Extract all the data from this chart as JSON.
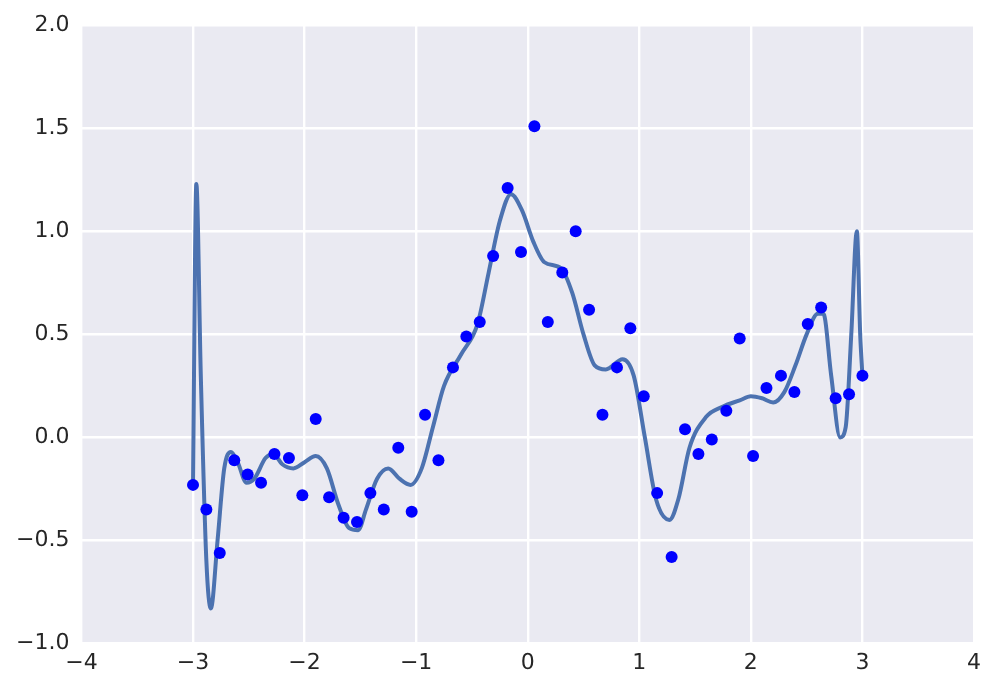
{
  "chart_data": {
    "type": "scatter",
    "xlim": [
      -4,
      4
    ],
    "xticks": [
      -4,
      -3,
      -2,
      -1,
      0,
      1,
      2,
      3,
      4
    ],
    "ylim": [
      -1,
      2
    ],
    "yticks": [
      {
        "value": -1,
        "label": "−1.0"
      },
      -0.5,
      {
        "value": 0,
        "label": "0.0"
      },
      0.5,
      {
        "value": 1,
        "label": "1.0"
      },
      1.5,
      {
        "value": 2,
        "label": "2.0"
      }
    ],
    "grid": true,
    "legend": false,
    "series": [
      {
        "color": "#0000ff",
        "marker": "circle",
        "x": [
          -3.0,
          -2.88,
          -2.76,
          -2.63,
          -2.51,
          -2.39,
          -2.27,
          -2.14,
          -2.02,
          -1.9,
          -1.78,
          -1.65,
          -1.53,
          -1.41,
          -1.29,
          -1.16,
          -1.04,
          -0.92,
          -0.8,
          -0.67,
          -0.55,
          -0.43,
          -0.31,
          -0.18,
          -0.06,
          0.06,
          0.18,
          0.31,
          0.43,
          0.55,
          0.67,
          0.8,
          0.92,
          1.04,
          1.16,
          1.29,
          1.41,
          1.53,
          1.65,
          1.78,
          1.9,
          2.02,
          2.14,
          2.27,
          2.39,
          2.51,
          2.63,
          2.76,
          2.88,
          3.0
        ],
        "values": [
          -0.23,
          -0.35,
          -0.56,
          -0.11,
          -0.18,
          -0.22,
          -0.08,
          -0.1,
          -0.28,
          0.09,
          -0.29,
          -0.39,
          -0.41,
          -0.27,
          -0.35,
          -0.05,
          -0.36,
          0.11,
          -0.11,
          0.34,
          0.49,
          0.56,
          0.88,
          1.21,
          0.9,
          1.51,
          0.56,
          0.8,
          1.0,
          0.62,
          0.11,
          0.34,
          0.53,
          0.2,
          -0.27,
          -0.58,
          0.04,
          -0.08,
          -0.01,
          0.13,
          0.48,
          -0.09,
          0.24,
          0.3,
          0.22,
          0.55,
          0.63,
          0.19,
          0.21,
          0.3
        ]
      },
      {
        "type": "line",
        "color": "#4c72b0",
        "marker": "none",
        "line_style": "solid",
        "x": [
          -3.0,
          -2.97,
          -2.93,
          -2.88,
          -2.84,
          -2.78,
          -2.72,
          -2.66,
          -2.6,
          -2.52,
          -2.45,
          -2.35,
          -2.28,
          -2.2,
          -2.1,
          -2.0,
          -1.9,
          -1.8,
          -1.7,
          -1.6,
          -1.52,
          -1.45,
          -1.35,
          -1.25,
          -1.15,
          -1.05,
          -0.95,
          -0.85,
          -0.75,
          -0.6,
          -0.45,
          -0.35,
          -0.25,
          -0.15,
          -0.05,
          0.05,
          0.15,
          0.3,
          0.4,
          0.5,
          0.6,
          0.7,
          0.85,
          0.95,
          1.05,
          1.15,
          1.27,
          1.35,
          1.45,
          1.6,
          1.75,
          1.9,
          2.0,
          2.1,
          2.2,
          2.3,
          2.4,
          2.5,
          2.6,
          2.65,
          2.72,
          2.8,
          2.85,
          2.9,
          2.95,
          2.98,
          3.0
        ],
        "values": [
          -0.23,
          1.23,
          0.3,
          -0.6,
          -0.83,
          -0.5,
          -0.15,
          -0.07,
          -0.12,
          -0.22,
          -0.2,
          -0.1,
          -0.08,
          -0.13,
          -0.15,
          -0.12,
          -0.09,
          -0.15,
          -0.32,
          -0.44,
          -0.45,
          -0.35,
          -0.2,
          -0.15,
          -0.2,
          -0.23,
          -0.15,
          0.05,
          0.25,
          0.4,
          0.55,
          0.8,
          1.05,
          1.18,
          1.1,
          0.95,
          0.85,
          0.82,
          0.7,
          0.5,
          0.35,
          0.33,
          0.38,
          0.3,
          0.0,
          -0.3,
          -0.4,
          -0.3,
          -0.05,
          0.1,
          0.15,
          0.18,
          0.2,
          0.19,
          0.17,
          0.22,
          0.35,
          0.5,
          0.6,
          0.6,
          0.3,
          0.0,
          0.05,
          0.5,
          1.0,
          0.5,
          0.3
        ]
      }
    ]
  }
}
